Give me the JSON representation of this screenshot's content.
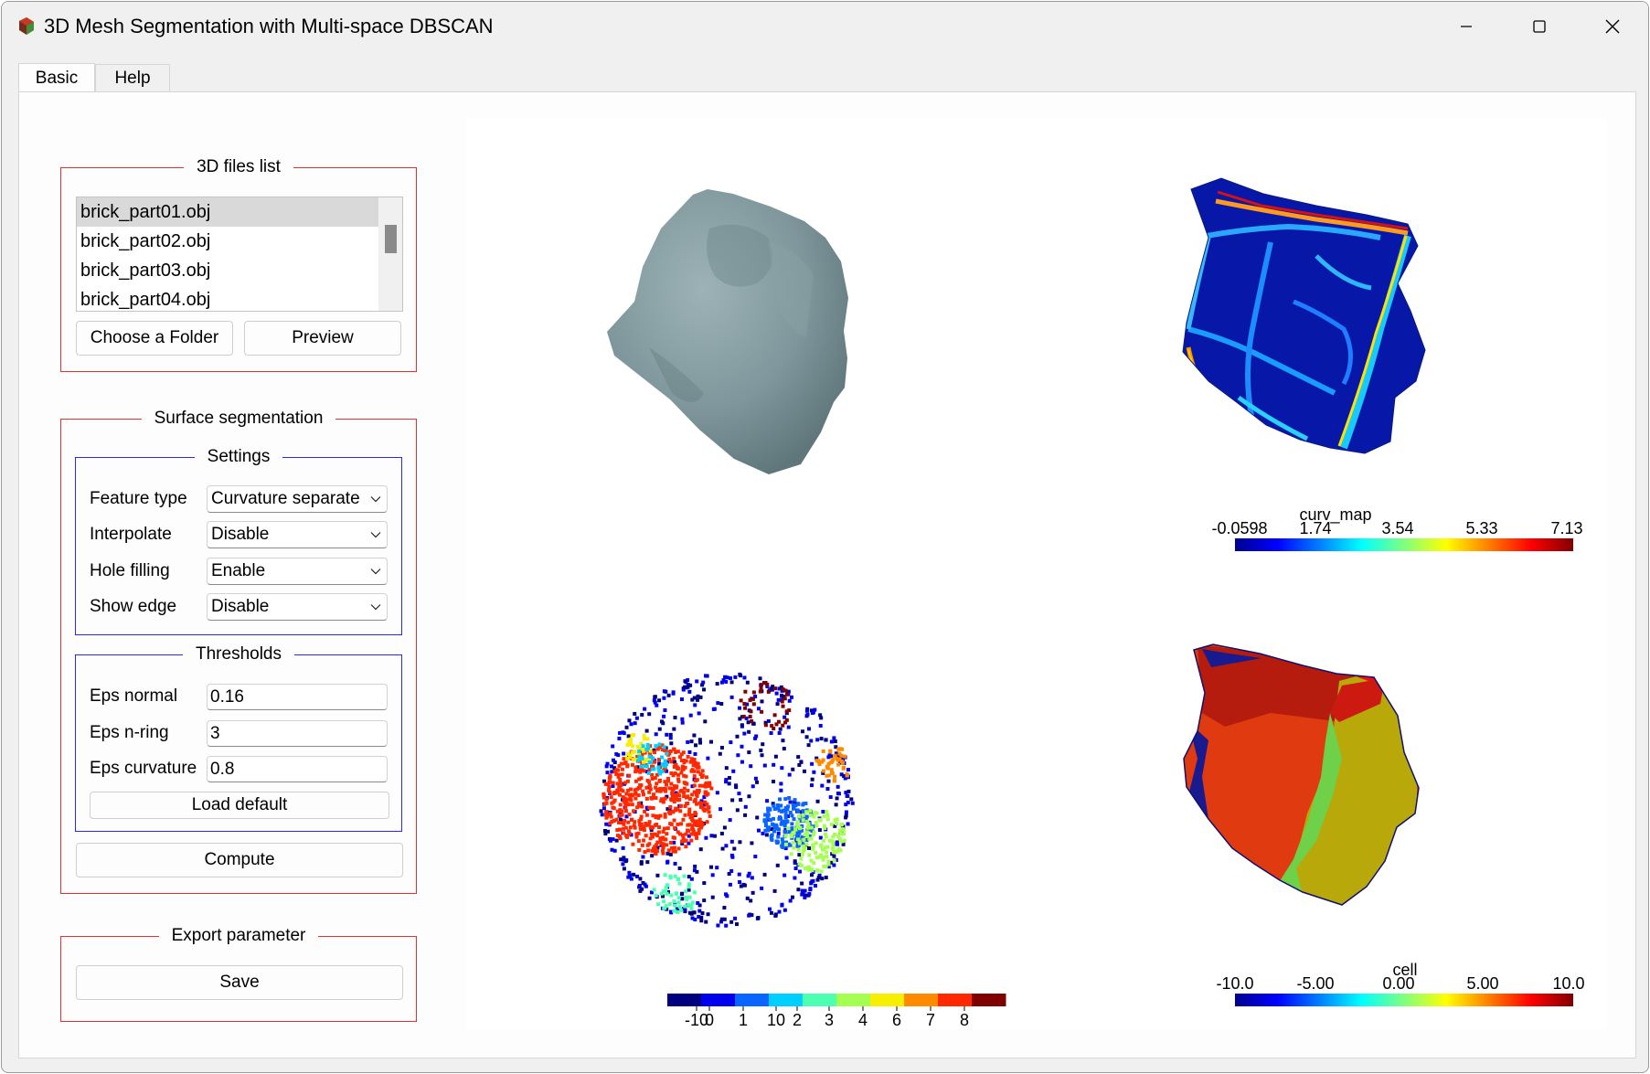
{
  "window": {
    "title": "3D Mesh Segmentation with Multi-space DBSCAN"
  },
  "tabs": [
    {
      "label": "Basic"
    },
    {
      "label": "Help"
    }
  ],
  "files_group": {
    "title": "3D files list",
    "files": [
      "brick_part01.obj",
      "brick_part02.obj",
      "brick_part03.obj",
      "brick_part04.obj"
    ],
    "choose_folder_label": "Choose a Folder",
    "preview_label": "Preview"
  },
  "segmentation_group": {
    "title": "Surface segmentation",
    "settings": {
      "title": "Settings",
      "rows": [
        {
          "label": "Feature type",
          "value": "Curvature separate"
        },
        {
          "label": "Interpolate",
          "value": "Disable"
        },
        {
          "label": "Hole filling",
          "value": "Enable"
        },
        {
          "label": "Show edge",
          "value": "Disable"
        }
      ]
    },
    "thresholds": {
      "title": "Thresholds",
      "rows": [
        {
          "label": "Eps normal",
          "value": "0.16"
        },
        {
          "label": "Eps n-ring",
          "value": "3"
        },
        {
          "label": "Eps curvature",
          "value": "0.8"
        }
      ],
      "load_default_label": "Load default"
    },
    "compute_label": "Compute"
  },
  "export_group": {
    "title": "Export parameter",
    "save_label": "Save"
  },
  "views": {
    "curv_colorbar": {
      "title": "curv_map",
      "ticks": [
        "-0.0598",
        "1.74",
        "3.54",
        "5.33",
        "7.13"
      ]
    },
    "cell_colorbar": {
      "title": "cell",
      "ticks": [
        "-10.0",
        "-5.00",
        "0.00",
        "5.00",
        "10.0"
      ]
    },
    "cluster_colorbar": {
      "ticks": [
        "-10",
        "0",
        "1",
        "10",
        "2",
        "3",
        "4",
        "6",
        "7",
        "8"
      ],
      "colors": [
        "#00007f",
        "#0000ee",
        "#0a64ff",
        "#00d0ff",
        "#4dffb0",
        "#a4ff52",
        "#f8ee00",
        "#ff8a00",
        "#ff2800",
        "#800000"
      ]
    },
    "mesh_color": "#7f9a9f"
  }
}
